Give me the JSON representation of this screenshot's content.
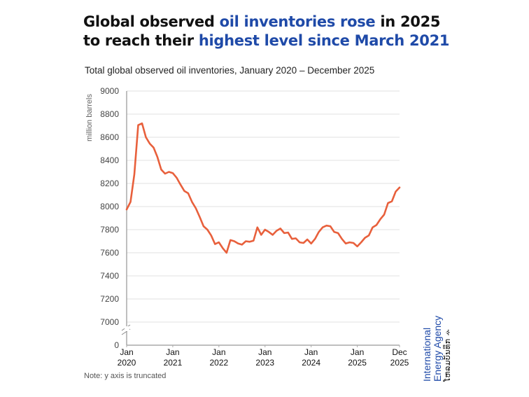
{
  "title": {
    "parts": [
      {
        "text": "Global observed ",
        "highlight": false
      },
      {
        "text": "oil inventories rose",
        "highlight": true
      },
      {
        "text": " in 2025 to reach their ",
        "highlight": false
      },
      {
        "text": "highest level since March 2021",
        "highlight": true
      }
    ],
    "highlight_color": "#1f4aa8"
  },
  "subtitle": "Total global observed oil inventories, January 2020 – December 2025",
  "note": "Note: y axis is truncated",
  "logo": {
    "line1": "International",
    "line2": "Energy Agency",
    "line3": "ໂຫລມບັນທຶກ ꕂ"
  },
  "chart_data": {
    "type": "line",
    "title": "Total global observed oil inventories, January 2020 – December 2025",
    "xlabel": "",
    "ylabel": "million barrels",
    "ylim": [
      7000,
      9000
    ],
    "y_truncated": true,
    "y_ticks": [
      "9000",
      "8800",
      "8600",
      "8400",
      "8200",
      "8000",
      "7800",
      "7600",
      "7400",
      "7200",
      "7000",
      "0"
    ],
    "x_ticks": [
      {
        "line1": "Jan",
        "line2": "2020",
        "month_index": 0
      },
      {
        "line1": "Jan",
        "line2": "2021",
        "month_index": 12
      },
      {
        "line1": "Jan",
        "line2": "2022",
        "month_index": 24
      },
      {
        "line1": "Jan",
        "line2": "2023",
        "month_index": 36
      },
      {
        "line1": "Jan",
        "line2": "2024",
        "month_index": 48
      },
      {
        "line1": "Jan",
        "line2": "2025",
        "month_index": 60
      },
      {
        "line1": "Dec",
        "line2": "2025",
        "month_index": 71
      }
    ],
    "grid": true,
    "line_color": "#e8603c",
    "series": [
      {
        "name": "Total global observed oil inventories",
        "start": "2020-01",
        "values": [
          7975,
          8040,
          8280,
          8705,
          8720,
          8600,
          8545,
          8510,
          8430,
          8320,
          8285,
          8300,
          8290,
          8250,
          8190,
          8135,
          8115,
          8040,
          7985,
          7910,
          7830,
          7800,
          7750,
          7675,
          7690,
          7640,
          7600,
          7710,
          7700,
          7680,
          7670,
          7700,
          7695,
          7705,
          7820,
          7755,
          7800,
          7780,
          7755,
          7790,
          7810,
          7770,
          7775,
          7720,
          7725,
          7690,
          7685,
          7715,
          7680,
          7720,
          7780,
          7820,
          7835,
          7830,
          7780,
          7770,
          7720,
          7680,
          7690,
          7685,
          7655,
          7690,
          7730,
          7750,
          7820,
          7840,
          7890,
          7930,
          8030,
          8045,
          8130,
          8165
        ]
      }
    ]
  }
}
